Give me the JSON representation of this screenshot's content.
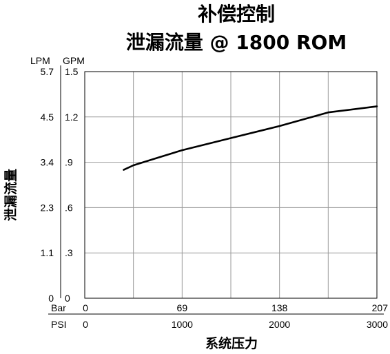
{
  "chart_data": {
    "type": "line",
    "title": "补偿控制",
    "subtitle": "泄漏流量 @ 1800 ROM",
    "ylabel": "泄漏流量",
    "xlabel": "系统压力",
    "y_unit_left": "LPM",
    "y_unit_right": "GPM",
    "x_unit_top": "Bar",
    "x_unit_bottom": "PSI",
    "lpm_ticks": [
      "0",
      "1.1",
      "2.3",
      "3.4",
      "4.5",
      "5.7"
    ],
    "gpm_ticks": [
      "0",
      ".3",
      ".6",
      ".9",
      "1.2",
      "1.5"
    ],
    "bar_ticks": [
      "0",
      "69",
      "138",
      "207"
    ],
    "psi_ticks": [
      "0",
      "1000",
      "2000",
      "3000"
    ],
    "xlim": [
      0,
      3000
    ],
    "ylim": [
      0,
      1.5
    ],
    "x_axis_quantity": "PSI",
    "y_axis_quantity": "GPM",
    "grid": true,
    "series": [
      {
        "x": [
          400,
          500,
          750,
          1000,
          1500,
          2000,
          2500,
          3000
        ],
        "y": [
          0.85,
          0.88,
          0.93,
          0.98,
          1.06,
          1.14,
          1.23,
          1.27
        ]
      }
    ]
  }
}
